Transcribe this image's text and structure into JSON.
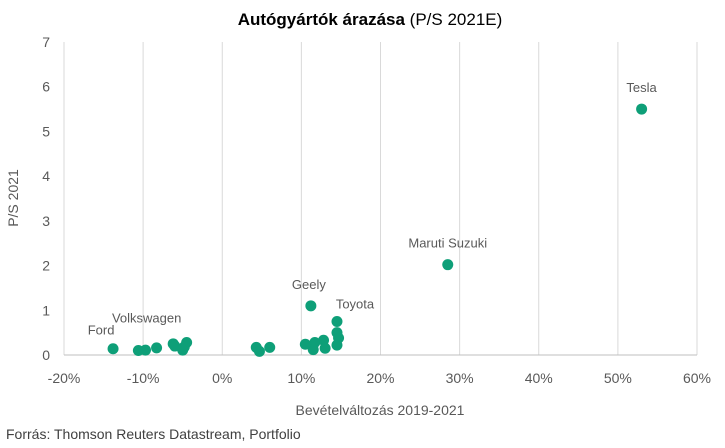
{
  "chart_data": {
    "type": "scatter",
    "title_bold": "Autógyártók árazása",
    "title_rest": "(P/S 2021E)",
    "xlabel": "Bevételváltozás 2019-2021",
    "ylabel": "P/S 2021",
    "xlim": [
      -0.2,
      0.6
    ],
    "ylim": [
      0,
      7
    ],
    "xticks": [
      -0.2,
      -0.1,
      0,
      0.1,
      0.2,
      0.3,
      0.4,
      0.5,
      0.6
    ],
    "xtick_labels": [
      "-20%",
      "-10%",
      "0%",
      "10%",
      "20%",
      "30%",
      "40%",
      "50%",
      "60%"
    ],
    "yticks": [
      0,
      1,
      2,
      3,
      4,
      5,
      6,
      7
    ],
    "ytick_labels": [
      "0",
      "1",
      "2",
      "3",
      "4",
      "5",
      "6",
      "7"
    ],
    "grid": "vertical",
    "marker_color": "#0e9f78",
    "points": [
      {
        "x": 0.53,
        "y": 5.5
      },
      {
        "x": 0.285,
        "y": 2.02
      },
      {
        "x": 0.112,
        "y": 1.1
      },
      {
        "x": 0.145,
        "y": 0.75
      },
      {
        "x": 0.145,
        "y": 0.5
      },
      {
        "x": 0.147,
        "y": 0.38
      },
      {
        "x": 0.145,
        "y": 0.22
      },
      {
        "x": 0.128,
        "y": 0.33
      },
      {
        "x": 0.13,
        "y": 0.15
      },
      {
        "x": 0.117,
        "y": 0.28
      },
      {
        "x": 0.115,
        "y": 0.12
      },
      {
        "x": 0.105,
        "y": 0.24
      },
      {
        "x": 0.06,
        "y": 0.17
      },
      {
        "x": 0.043,
        "y": 0.17
      },
      {
        "x": 0.047,
        "y": 0.08
      },
      {
        "x": -0.045,
        "y": 0.28
      },
      {
        "x": -0.048,
        "y": 0.18
      },
      {
        "x": -0.05,
        "y": 0.11
      },
      {
        "x": -0.062,
        "y": 0.25
      },
      {
        "x": -0.06,
        "y": 0.2
      },
      {
        "x": -0.083,
        "y": 0.16
      },
      {
        "x": -0.097,
        "y": 0.11
      },
      {
        "x": -0.106,
        "y": 0.1
      },
      {
        "x": -0.138,
        "y": 0.14
      }
    ],
    "annotations": [
      {
        "text": "Tesla",
        "x": 0.53,
        "y": 5.5
      },
      {
        "text": "Maruti Suzuki",
        "x": 0.285,
        "y": 2.02
      },
      {
        "text": "Geely",
        "x": 0.112,
        "y": 1.1
      },
      {
        "text": "Toyota",
        "x": 0.145,
        "y": 0.75
      },
      {
        "text": "Volkswagen",
        "x": -0.045,
        "y": 0.28
      },
      {
        "text": "Ford",
        "x": -0.138,
        "y": 0.14
      }
    ]
  },
  "source": "Forrás: Thomson Reuters Datastream, Portfolio"
}
